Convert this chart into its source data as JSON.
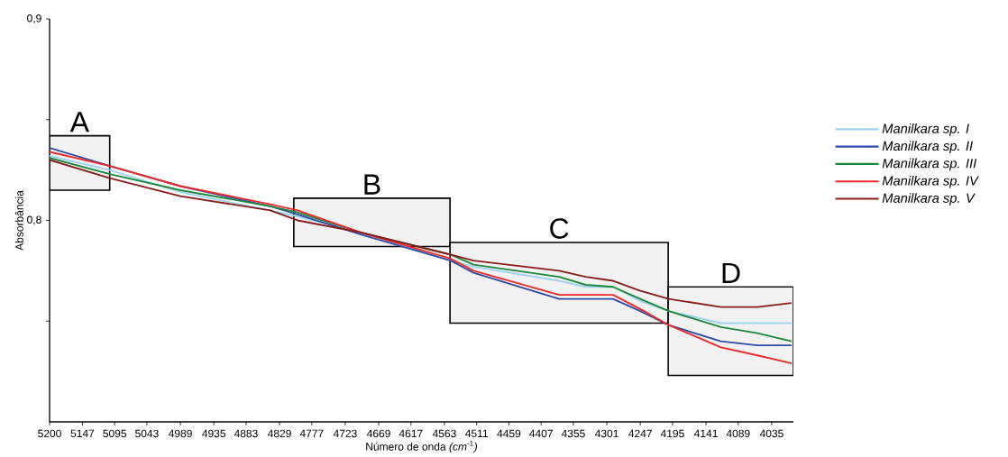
{
  "chart_data": {
    "type": "line",
    "xlabel": "Número de onda *(cm*$^{-1}$*)*",
    "ylabel": "Absorbância",
    "x": [
      5200,
      5103,
      4989,
      4844,
      4800,
      4698,
      4553,
      4516,
      4378,
      4335,
      4291,
      4247,
      4201,
      4117,
      4058,
      4003
    ],
    "series": [
      {
        "name": "Manilkara sp. I",
        "color": "#9dd3ef",
        "values": [
          0.832,
          0.825,
          0.814,
          0.805,
          0.802,
          0.794,
          0.78,
          0.777,
          0.77,
          0.767,
          0.767,
          0.76,
          0.755,
          0.749,
          0.749,
          0.749
        ]
      },
      {
        "name": "Manilkara sp. II",
        "color": "#2e4aa8",
        "values": [
          0.836,
          0.827,
          0.817,
          0.807,
          0.803,
          0.793,
          0.78,
          0.774,
          0.761,
          0.761,
          0.761,
          0.755,
          0.748,
          0.74,
          0.738,
          0.738
        ]
      },
      {
        "name": "Manilkara sp. III",
        "color": "#1a8a3a",
        "values": [
          0.831,
          0.823,
          0.815,
          0.807,
          0.804,
          0.794,
          0.783,
          0.778,
          0.772,
          0.768,
          0.767,
          0.761,
          0.755,
          0.747,
          0.744,
          0.74
        ]
      },
      {
        "name": "Manilkara sp. IV",
        "color": "#f0282a",
        "values": [
          0.834,
          0.827,
          0.817,
          0.808,
          0.805,
          0.794,
          0.781,
          0.775,
          0.763,
          0.763,
          0.763,
          0.756,
          0.748,
          0.737,
          0.733,
          0.729
        ]
      },
      {
        "name": "Manilkara sp. V",
        "color": "#8b1a1a",
        "values": [
          0.83,
          0.821,
          0.812,
          0.805,
          0.8,
          0.794,
          0.783,
          0.78,
          0.775,
          0.772,
          0.77,
          0.765,
          0.761,
          0.757,
          0.757,
          0.759
        ]
      }
    ],
    "xlim": [
      5200,
      4000
    ],
    "xticks": [
      5200,
      5147,
      5095,
      5043,
      4989,
      4935,
      4883,
      4829,
      4777,
      4723,
      4669,
      4617,
      4563,
      4511,
      4459,
      4407,
      4355,
      4301,
      4247,
      4195,
      4141,
      4089,
      4035
    ],
    "ylim": [
      0.7,
      0.9
    ],
    "yticks": [
      {
        "value": 0.75,
        "label": null
      },
      {
        "value": 0.8,
        "label": "0,8"
      },
      {
        "value": 0.85,
        "label": null
      },
      {
        "value": 0.9,
        "label": "0,9"
      }
    ],
    "bands": [
      {
        "axis": "x",
        "from": 5200,
        "to": 5103,
        "label": "A",
        "color": "#f2f2f2"
      },
      {
        "axis": "x",
        "from": 4806,
        "to": 4554,
        "label": "B",
        "color": "#f2f2f2"
      },
      {
        "axis": "x",
        "from": 4554,
        "to": 4202,
        "label": "C",
        "color": "#f2f2f2"
      },
      {
        "axis": "x",
        "from": 4202,
        "to": 4000,
        "label": "D",
        "color": "#f2f2f2"
      }
    ],
    "legend": "right",
    "line_style": "solid"
  }
}
